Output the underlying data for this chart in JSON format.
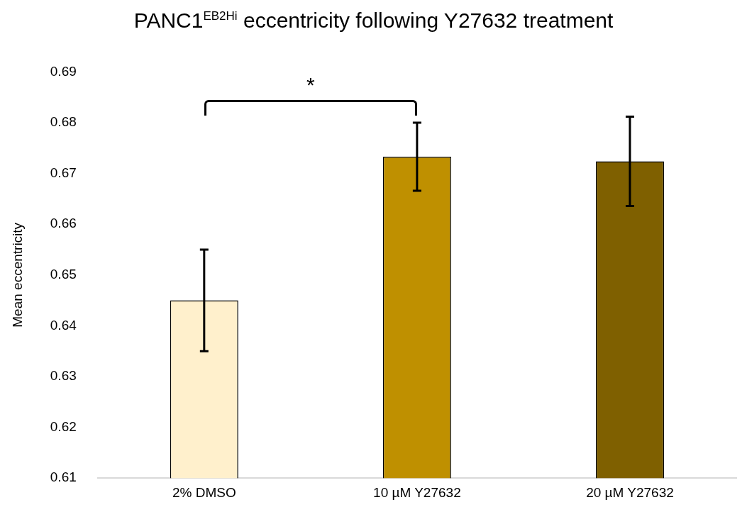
{
  "chart_data": {
    "type": "bar",
    "title": "PANC1$^{EB2Hi}$ eccentricity following Y27632 treatment",
    "ylabel": "Mean eccentricity",
    "categories": [
      "2% DMSO",
      "10 µM Y27632",
      "20 µM Y27632"
    ],
    "values": [
      0.645,
      0.6733,
      0.6724
    ],
    "colors": [
      "#fff0cc",
      "#bf9000",
      "#7f6000"
    ],
    "errors": [
      0.01,
      0.0067,
      0.0088
    ],
    "ylim": [
      0.61,
      0.69
    ],
    "yticks": [
      0.61,
      0.62,
      0.63,
      0.64,
      0.65,
      0.66,
      0.67,
      0.68,
      0.69
    ],
    "grid": false,
    "legend": false,
    "annotations": [
      "*"
    ]
  }
}
